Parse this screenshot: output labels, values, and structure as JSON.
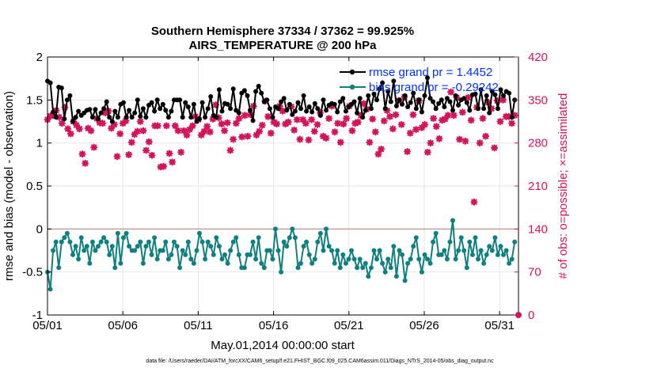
{
  "chart_data": {
    "type": "line",
    "title_line1": "Southern Hemisphere 37334 / 37362 = 99.925%",
    "title_line2": "AIRS_TEMPERATURE @ 200 hPa",
    "xlabel": "May.01,2014 00:00:00 start",
    "ylabel_left": "rmse and bias (model - observation)",
    "ylabel_right": "# of obs: o=possible; ×=assimilated",
    "footnote": "data file: /Users/raeder/DAI/ATM_forcXX/CAM6_setup/f.e21.FHIST_BGC.f09_025.CAM6assim.011/Diags_NTrS_2014-05/obs_diag_output.nc",
    "x_tick_labels": [
      "05/01",
      "05/06",
      "05/11",
      "05/16",
      "05/21",
      "05/26",
      "05/31"
    ],
    "x_tick_days": [
      0,
      5,
      10,
      15,
      20,
      25,
      30
    ],
    "xlim_days": [
      0,
      31.25
    ],
    "left_axis": {
      "ylim": [
        -1,
        2
      ],
      "ticks": [
        -1,
        -0.5,
        0,
        0.5,
        1,
        1.5,
        2
      ],
      "tick_labels": [
        "-1",
        "-0.5",
        "0",
        "0.5",
        "1",
        "1.5",
        "2"
      ]
    },
    "right_axis": {
      "ylim": [
        0,
        420
      ],
      "ticks": [
        0,
        70,
        140,
        210,
        280,
        350,
        420
      ],
      "tick_labels": [
        "0",
        "70",
        "140",
        "210",
        "280",
        "350",
        "420"
      ]
    },
    "legend": [
      "rmse grand pr = 1.4452",
      "bias grand pr = -0.29242"
    ],
    "colors": {
      "rmse": "#000000",
      "bias": "#0f8080",
      "obs": "#d4145a",
      "zero_line": "#c8a0a0",
      "grid": "#e6e6e6",
      "legend_text": "#0033ff"
    },
    "series": [
      {
        "name": "rmse",
        "values": [
          1.72,
          1.7,
          1.36,
          1.3,
          1.65,
          1.64,
          1.28,
          1.5,
          1.55,
          1.25,
          1.3,
          1.37,
          1.32,
          1.35,
          1.38,
          1.39,
          1.3,
          1.39,
          1.28,
          1.35,
          1.4,
          1.48,
          1.3,
          1.25,
          1.37,
          1.3,
          1.45,
          1.47,
          1.3,
          1.38,
          1.3,
          1.35,
          1.5,
          1.31,
          1.4,
          1.3,
          1.44,
          1.47,
          1.37,
          1.5,
          1.4,
          1.45,
          1.38,
          1.3,
          1.37,
          1.5,
          1.5,
          1.5,
          1.3,
          1.47,
          1.42,
          1.3,
          1.45,
          1.25,
          1.28,
          1.47,
          1.3,
          1.4,
          1.54,
          1.32,
          1.3,
          1.62,
          1.37,
          1.46,
          1.45,
          1.4,
          1.63,
          1.38,
          1.35,
          1.58,
          1.61,
          1.55,
          1.38,
          1.26,
          1.6,
          1.66,
          1.58,
          1.48,
          1.5,
          1.4,
          1.3,
          1.42,
          1.4,
          1.48,
          1.52,
          1.38,
          1.45,
          1.33,
          1.37,
          1.47,
          1.4,
          1.55,
          1.37,
          1.42,
          1.36,
          1.46,
          1.4,
          1.32,
          1.5,
          1.38,
          1.44,
          1.46,
          1.45,
          1.36,
          1.48,
          1.52,
          1.37,
          1.42,
          1.45,
          1.48,
          1.35,
          1.52,
          1.3,
          1.38,
          1.55,
          1.4,
          1.57,
          1.5,
          1.63,
          1.7,
          1.4,
          1.6,
          1.48,
          1.72,
          1.43,
          1.5,
          1.45,
          1.55,
          1.42,
          1.47,
          1.58,
          1.4,
          1.5,
          1.36,
          1.55,
          1.76,
          1.52,
          1.48,
          1.4,
          1.46,
          1.5,
          1.42,
          1.52,
          1.48,
          1.38,
          1.55,
          1.44,
          1.5,
          1.52,
          1.47,
          1.38,
          1.56,
          1.57,
          1.4,
          1.62,
          1.4,
          1.55,
          1.35,
          1.6,
          1.56,
          1.4,
          1.62,
          1.55,
          1.6,
          1.58,
          1.3,
          1.5
        ]
      },
      {
        "name": "bias",
        "values": [
          -0.5,
          -0.7,
          -0.25,
          -0.15,
          -0.45,
          -0.15,
          -0.1,
          -0.05,
          -0.15,
          -0.3,
          -0.2,
          -0.35,
          -0.1,
          -0.25,
          -0.2,
          -0.4,
          -0.15,
          -0.25,
          -0.2,
          -0.15,
          -0.1,
          -0.15,
          -0.3,
          -0.2,
          -0.45,
          -0.05,
          -0.4,
          -0.1,
          -0.05,
          -0.2,
          -0.25,
          -0.25,
          -0.2,
          -0.15,
          -0.4,
          -0.2,
          -0.15,
          -0.3,
          -0.1,
          -0.35,
          -0.25,
          -0.25,
          -0.15,
          -0.35,
          -0.3,
          -0.15,
          -0.2,
          -0.45,
          -0.25,
          -0.3,
          -0.15,
          -0.35,
          -0.4,
          -0.25,
          -0.05,
          -0.15,
          -0.35,
          -0.15,
          -0.2,
          -0.3,
          -0.1,
          -0.2,
          -0.35,
          -0.3,
          -0.4,
          -0.25,
          -0.15,
          -0.1,
          -0.3,
          -0.45,
          -0.45,
          -0.3,
          -0.3,
          -0.15,
          -0.35,
          -0.1,
          -0.4,
          -0.45,
          -0.25,
          -0.25,
          -0.35,
          0.0,
          -0.25,
          -0.5,
          -0.15,
          -0.2,
          -0.1,
          0.0,
          -0.1,
          -0.45,
          -0.4,
          -0.2,
          -0.15,
          -0.3,
          -0.4,
          -0.35,
          -0.15,
          -0.05,
          -0.25,
          0.0,
          -0.2,
          -0.25,
          -0.4,
          -0.25,
          -0.45,
          -0.3,
          -0.4,
          -0.35,
          -0.25,
          -0.35,
          -0.45,
          -0.35,
          -0.45,
          -0.4,
          -0.55,
          -0.45,
          -0.25,
          -0.35,
          -0.25,
          -0.4,
          -0.5,
          -0.35,
          -0.45,
          -0.2,
          -0.55,
          -0.25,
          -0.3,
          -0.6,
          -0.4,
          -0.35,
          -0.2,
          -0.1,
          -0.35,
          -0.5,
          -0.3,
          -0.35,
          -0.4,
          -0.15,
          -0.05,
          -0.3,
          -0.3,
          -0.25,
          -0.35,
          -0.15,
          0.1,
          -0.35,
          -0.25,
          -0.1,
          -0.25,
          -0.45,
          -0.15,
          -0.3,
          -0.1,
          -0.35,
          -0.25,
          -0.4,
          -0.3,
          -0.2,
          -0.25,
          -0.1,
          -0.3,
          -0.2,
          -0.3,
          -0.25,
          -0.4,
          -0.35,
          -0.15
        ]
      },
      {
        "name": "obs_assimilated",
        "values": [
          318,
          324,
          325,
          333,
          322,
          312,
          338,
          303,
          295,
          315,
          309,
          303,
          262,
          247,
          304,
          300,
          273,
          320,
          313,
          312,
          329,
          332,
          304,
          310,
          258,
          295,
          312,
          316,
          261,
          281,
          294,
          299,
          315,
          300,
          268,
          282,
          260,
          308,
          308,
          241,
          242,
          308,
          263,
          249,
          308,
          300,
          265,
          300,
          293,
          302,
          308,
          323,
          318,
          293,
          299,
          307,
          298,
          319,
          342,
          321,
          311,
          300,
          313,
          268,
          286,
          312,
          320,
          290,
          325,
          291,
          326,
          340,
          293,
          299,
          309,
          348,
          323,
          296,
          314,
          311,
          340,
          332,
          311,
          314,
          339,
          301,
          318,
          286,
          318,
          312,
          285,
          318,
          299,
          310,
          329,
          291,
          288,
          320,
          340,
          298,
          312,
          281,
          311,
          320,
          340,
          300,
          312,
          314,
          325,
          344,
          335,
          281,
          319,
          298,
          262,
          270,
          316,
          333,
          323,
          303,
          326,
          349,
          310,
          355,
          266,
          296,
          326,
          302,
          349,
          305,
          310,
          265,
          280,
          320,
          307,
          287,
          317,
          319,
          325,
          363,
          325,
          354,
          286,
          330,
          283,
          354,
          317,
          184,
          338,
          280,
          320,
          291,
          346,
          336,
          272,
          349,
          315,
          350,
          323,
          323,
          312,
          325
        ]
      }
    ]
  }
}
